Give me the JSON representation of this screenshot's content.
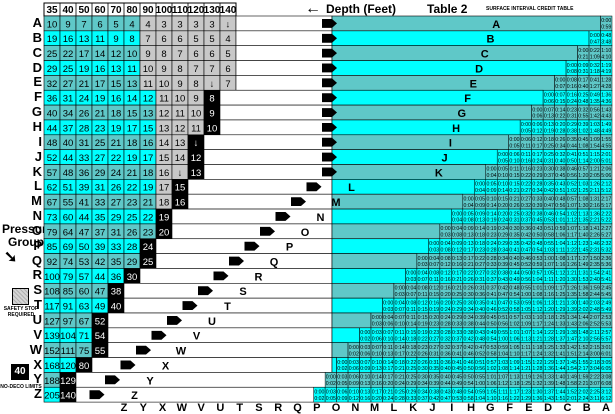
{
  "header": {
    "depth_label": "Depth (Feet)",
    "arrow_glyph": "←",
    "table_label": "Table 2",
    "subtitle": "SURFACE INTERVAL CREDIT TABLE"
  },
  "depths": [
    "35",
    "40",
    "50",
    "60",
    "70",
    "80",
    "90",
    "100",
    "110",
    "120",
    "130",
    "140"
  ],
  "groups": [
    "A",
    "B",
    "C",
    "D",
    "E",
    "F",
    "G",
    "H",
    "I",
    "J",
    "K",
    "L",
    "M",
    "N",
    "O",
    "P",
    "Q",
    "R",
    "S",
    "T",
    "U",
    "V",
    "W",
    "X",
    "Y",
    "Z"
  ],
  "bottom_letters": [
    "Z",
    "Y",
    "X",
    "W",
    "V",
    "U",
    "T",
    "S",
    "R",
    "Q",
    "P",
    "O",
    "N",
    "M",
    "L",
    "K",
    "J",
    "I",
    "H",
    "G",
    "F",
    "E",
    "D",
    "C",
    "B",
    "A"
  ],
  "sidebar": {
    "pressure_group_line1": "Pressure",
    "pressure_group_line2": "Group",
    "pressure_arrow": "➘",
    "safety_stop_label": "SAFETY STOP REQUIRED",
    "ndl_value": "40",
    "ndl_label": "NO-DECO LIMITS"
  },
  "colors": {
    "cyan": "#00ffff",
    "teal": "#5fc8c8",
    "gray": "#c8c8c8",
    "black": "#000000"
  },
  "dive_table": [
    [
      "10",
      "9",
      "7",
      "6",
      "5",
      "4",
      "4",
      "3",
      "3",
      "3",
      "3",
      "↓"
    ],
    [
      "19",
      "16",
      "13",
      "11",
      "9",
      "8",
      "7",
      "6",
      "6",
      "5",
      "5",
      "4"
    ],
    [
      "25",
      "22",
      "17",
      "14",
      "12",
      "10",
      "9",
      "8",
      "7",
      "6",
      "6",
      "5"
    ],
    [
      "29",
      "25",
      "19",
      "16",
      "13",
      "11",
      "10",
      "9",
      "8",
      "7",
      "7",
      "6"
    ],
    [
      "32",
      "27",
      "21",
      "17",
      "15",
      "13",
      "11",
      "10",
      "9",
      "8",
      "↓",
      "7"
    ],
    [
      "36",
      "31",
      "24",
      "19",
      "16",
      "14",
      "12",
      "11",
      "10",
      "9",
      "8",
      ""
    ],
    [
      "40",
      "34",
      "26",
      "21",
      "18",
      "15",
      "13",
      "12",
      "11",
      "10",
      "9",
      ""
    ],
    [
      "44",
      "37",
      "28",
      "23",
      "19",
      "17",
      "15",
      "13",
      "12",
      "11",
      "10",
      ""
    ],
    [
      "48",
      "40",
      "31",
      "25",
      "21",
      "18",
      "16",
      "14",
      "13",
      "↓",
      "",
      ""
    ],
    [
      "52",
      "44",
      "33",
      "27",
      "22",
      "19",
      "17",
      "15",
      "14",
      "12",
      "",
      ""
    ],
    [
      "57",
      "48",
      "36",
      "29",
      "24",
      "21",
      "18",
      "16",
      "↓",
      "13",
      "",
      ""
    ],
    [
      "62",
      "51",
      "39",
      "31",
      "26",
      "22",
      "19",
      "17",
      "15",
      "",
      "",
      ""
    ],
    [
      "67",
      "55",
      "41",
      "33",
      "27",
      "23",
      "21",
      "18",
      "16",
      "",
      "",
      ""
    ],
    [
      "73",
      "60",
      "44",
      "35",
      "29",
      "25",
      "22",
      "19",
      "",
      "",
      "",
      ""
    ],
    [
      "79",
      "64",
      "47",
      "37",
      "31",
      "26",
      "23",
      "20",
      "",
      "",
      "",
      ""
    ],
    [
      "85",
      "69",
      "50",
      "39",
      "33",
      "28",
      "24",
      "",
      "",
      "",
      "",
      ""
    ],
    [
      "92",
      "74",
      "53",
      "42",
      "35",
      "29",
      "25",
      "",
      "",
      "",
      "",
      ""
    ],
    [
      "100",
      "79",
      "57",
      "44",
      "36",
      "30",
      "",
      "",
      "",
      "",
      "",
      ""
    ],
    [
      "108",
      "85",
      "60",
      "47",
      "38",
      "",
      "",
      "",
      "",
      "",
      "",
      ""
    ],
    [
      "117",
      "91",
      "63",
      "49",
      "40",
      "",
      "",
      "",
      "",
      "",
      "",
      ""
    ],
    [
      "127",
      "97",
      "67",
      "52",
      "",
      "",
      "",
      "",
      "",
      "",
      "",
      ""
    ],
    [
      "139",
      "104",
      "71",
      "54",
      "",
      "",
      "",
      "",
      "",
      "",
      "",
      ""
    ],
    [
      "152",
      "111",
      "75",
      "55",
      "",
      "",
      "",
      "",
      "",
      "",
      "",
      ""
    ],
    [
      "168",
      "120",
      "80",
      "",
      "",
      "",
      "",
      "",
      "",
      "",
      "",
      ""
    ],
    [
      "188",
      "129",
      "",
      "",
      "",
      "",
      "",
      "",
      "",
      "",
      "",
      ""
    ],
    [
      "205",
      "140",
      "",
      "",
      "",
      "",
      "",
      "",
      "",
      "",
      "",
      ""
    ]
  ],
  "credit_rows": [
    [
      "0:00-0:59"
    ],
    [
      "0:00-0:47",
      "0:48-3:48"
    ],
    [
      "0:00-0:21",
      "0:22-1:09",
      "1:10-4:10"
    ],
    [
      "0:00-0:08",
      "0:09-0:31",
      "0:32-1:18",
      "1:19-4:19"
    ],
    [
      "0:00-0:07",
      "0:08-0:16",
      "0:17-0:40",
      "0:41-1:27",
      "1:28-4:28"
    ],
    [
      "0:00-0:06",
      "0:07-0:15",
      "0:16-0:24",
      "0:25-0:48",
      "0:49-1:35",
      "1:36-4:36"
    ],
    [
      "0:00-0:06",
      "0:07-0:13",
      "0:14-0:22",
      "0:23-0:31",
      "0:32-0:55",
      "0:56-1:42",
      "1:43-4:43"
    ],
    [
      "0:00-0:05",
      "0:06-0:12",
      "0:13-0:19",
      "0:20-0:28",
      "0:29-0:38",
      "0:39-1:02",
      "1:03-1:48",
      "1:49-4:49"
    ],
    [
      "0:00-0:05",
      "0:06-0:11",
      "0:12-0:17",
      "0:18-0:25",
      "0:26-0:34",
      "0:35-0:44",
      "0:45-1:08",
      "1:09-1:54",
      "1:55-4:55"
    ],
    [
      "0:00-0:05",
      "0:06-0:10",
      "0:11-0:16",
      "0:17-0:24",
      "0:25-0:31",
      "0:32-0:40",
      "0:41-0:50",
      "0:51-1:14",
      "1:15-2:00",
      "2:01-5:01"
    ],
    [
      "0:00-0:04",
      "0:05-0:10",
      "0:11-0:15",
      "0:16-0:22",
      "0:23-0:29",
      "0:30-0:37",
      "0:38-0:45",
      "0:46-0:56",
      "0:57-1:20",
      "1:21-2:05",
      "2:06-5:06"
    ],
    [
      "0:00-0:04",
      "0:05-0:09",
      "0:10-0:14",
      "0:15-0:21",
      "0:22-0:27",
      "0:28-0:34",
      "0:35-0:42",
      "0:43-0:51",
      "0:52-1:02",
      "1:03-1:25",
      "1:26-2:11",
      "2:12-5:12"
    ],
    [
      "0:00-0:04",
      "0:05-0:09",
      "0:10-0:14",
      "0:15-0:20",
      "0:21-0:26",
      "0:27-0:32",
      "0:33-0:39",
      "0:40-0:47",
      "0:48-0:56",
      "0:57-1:07",
      "1:08-1:30",
      "1:31-2:16",
      "2:17-5:17"
    ],
    [
      "0:00-0:04",
      "0:05-0:08",
      "0:09-0:13",
      "0:14-0:19",
      "0:20-0:24",
      "0:25-0:31",
      "0:32-0:37",
      "0:38-0:45",
      "0:46-0:53",
      "0:54-1:01",
      "1:02-1:12",
      "1:13-1:35",
      "1:36-2:21",
      "2:22-5:22"
    ],
    [
      "0:00-0:03",
      "0:04-0:08",
      "0:09-0:13",
      "0:14-0:18",
      "0:19-0:23",
      "0:24-0:29",
      "0:30-0:35",
      "0:36-0:42",
      "0:43-0:50",
      "0:51-0:58",
      "0:59-1:06",
      "1:07-1:17",
      "1:18-1:40",
      "1:41-2:26",
      "2:27-5:27"
    ],
    [
      "0:00-0:03",
      "0:04-0:08",
      "0:09-0:12",
      "0:13-0:17",
      "0:18-0:23",
      "0:24-0:28",
      "0:29-0:34",
      "0:35-0:41",
      "0:42-0:47",
      "0:48-0:54",
      "0:55-1:03",
      "1:04-1:11",
      "1:12-1:22",
      "1:23-1:45",
      "1:46-2:31",
      "2:32-5:32"
    ],
    [
      "0:00-0:03",
      "0:04-0:07",
      "0:08-0:12",
      "0:13-0:16",
      "0:17-0:21",
      "0:22-0:27",
      "0:28-0:33",
      "0:34-0:39",
      "0:40-0:45",
      "0:46-0:52",
      "0:53-0:59",
      "1:00-1:07",
      "1:08-1:16",
      "1:17-1:26",
      "1:27-1:49",
      "1:50-2:35",
      "2:36-5:36"
    ],
    [
      "0:00-0:03",
      "0:04-0:07",
      "0:08-0:11",
      "0:12-0:16",
      "0:17-0:21",
      "0:22-0:26",
      "0:27-0:31",
      "0:32-0:37",
      "0:38-0:43",
      "0:44-0:49",
      "0:50-0:56",
      "0:57-1:04",
      "1:05-1:11",
      "1:12-1:20",
      "1:21-1:30",
      "1:31-1:53",
      "1:54-2:40",
      "2:41-5:41"
    ],
    [
      "0:00-0:03",
      "0:04-0:07",
      "0:08-0:11",
      "0:12-0:15",
      "0:16-0:20",
      "0:21-0:25",
      "0:26-0:30",
      "0:31-0:36",
      "0:37-0:41",
      "0:42-0:47",
      "0:48-0:54",
      "0:55-1:00",
      "1:01-1:08",
      "1:09-1:16",
      "1:17-1:25",
      "1:26-1:35",
      "1:36-1:58",
      "1:59-2:44",
      "2:45-5:45"
    ],
    [
      "0:00-0:03",
      "0:04-0:07",
      "0:08-0:11",
      "0:12-0:15",
      "0:16-0:19",
      "0:20-0:24",
      "0:25-0:29",
      "0:30-0:34",
      "0:35-0:40",
      "0:41-0:46",
      "0:47-0:52",
      "0:53-0:58",
      "0:59-1:05",
      "1:06-1:12",
      "1:13-1:20",
      "1:21-1:29",
      "1:30-1:39",
      "1:40-2:02",
      "2:03-2:48",
      "2:49-5:49"
    ],
    [
      "0:00-0:03",
      "0:04-0:06",
      "0:07-0:10",
      "0:11-0:14",
      "0:15-0:19",
      "0:20-0:23",
      "0:24-0:28",
      "0:29-0:33",
      "0:34-0:38",
      "0:39-0:44",
      "0:45-0:50",
      "0:51-0:56",
      "0:57-1:02",
      "1:03-1:09",
      "1:10-1:17",
      "1:18-1:24",
      "1:25-1:33",
      "1:34-1:43",
      "1:44-2:06",
      "2:07-2:52",
      "2:53-5:53"
    ],
    [
      "0:00-0:02",
      "0:03-0:06",
      "0:07-0:10",
      "0:11-0:14",
      "0:15-0:18",
      "0:19-0:22",
      "0:23-0:27",
      "0:28-0:32",
      "0:33-0:37",
      "0:38-0:42",
      "0:43-0:48",
      "0:49-0:54",
      "0:55-1:00",
      "1:01-1:06",
      "1:07-1:13",
      "1:14-1:21",
      "1:22-1:28",
      "1:29-1:37",
      "1:38-1:47",
      "1:48-2:10",
      "2:11-2:56",
      "2:57-5:57"
    ],
    [
      "0:00-0:02",
      "0:03-0:06",
      "0:07-0:10",
      "0:11-0:13",
      "0:14-0:17",
      "0:18-0:22",
      "0:23-0:26",
      "0:27-0:31",
      "0:32-0:36",
      "0:37-0:41",
      "0:42-0:46",
      "0:47-0:52",
      "0:53-0:58",
      "0:59-1:04",
      "1:05-1:10",
      "1:11-1:17",
      "1:18-1:24",
      "1:25-1:32",
      "1:33-1:41",
      "1:42-1:51",
      "1:52-2:14",
      "2:15-3:00",
      "3:01-6:01"
    ],
    [
      "0:00-0:02",
      "0:03-0:06",
      "0:07-0:09",
      "0:10-0:13",
      "0:14-0:17",
      "0:18-0:21",
      "0:22-0:25",
      "0:26-0:30",
      "0:31-0:35",
      "0:36-0:40",
      "0:41-0:45",
      "0:46-0:50",
      "0:51-0:56",
      "0:57-1:02",
      "1:03-1:08",
      "1:09-1:14",
      "1:15-1:21",
      "1:22-1:28",
      "1:29-1:36",
      "1:37-1:44",
      "1:45-1:54",
      "1:55-2:17",
      "2:18-3:04",
      "3:05-6:05"
    ],
    [
      "0:00-0:02",
      "0:03-0:05",
      "0:06-0:09",
      "0:10-0:13",
      "0:14-0:16",
      "0:17-0:20",
      "0:21-0:24",
      "0:25-0:29",
      "0:30-0:34",
      "0:35-0:39",
      "0:40-0:44",
      "0:45-0:49",
      "0:50-0:54",
      "0:55-1:00",
      "1:01-1:06",
      "1:07-1:12",
      "1:13-1:18",
      "1:19-1:25",
      "1:26-1:32",
      "1:33-1:39",
      "1:40-1:48",
      "1:49-1:58",
      "1:59-2:21",
      "2:22-3:07",
      "3:08-6:08"
    ],
    [
      "0:00-0:02",
      "0:03-0:05",
      "0:06-0:09",
      "0:10-0:12",
      "0:13-0:16",
      "0:17-0:20",
      "0:21-0:24",
      "0:25-0:28",
      "0:29-0:33",
      "0:34-0:37",
      "0:38-0:42",
      "0:43-0:47",
      "0:48-0:53",
      "0:54-0:58",
      "0:59-1:04",
      "1:05-1:10",
      "1:11-1:16",
      "1:17-1:22",
      "1:23-1:29",
      "1:30-1:36",
      "1:37-1:43",
      "1:44-1:51",
      "1:52-2:01",
      "2:02-2:24",
      "2:25-3:11",
      "3:12-6:12"
    ]
  ]
}
